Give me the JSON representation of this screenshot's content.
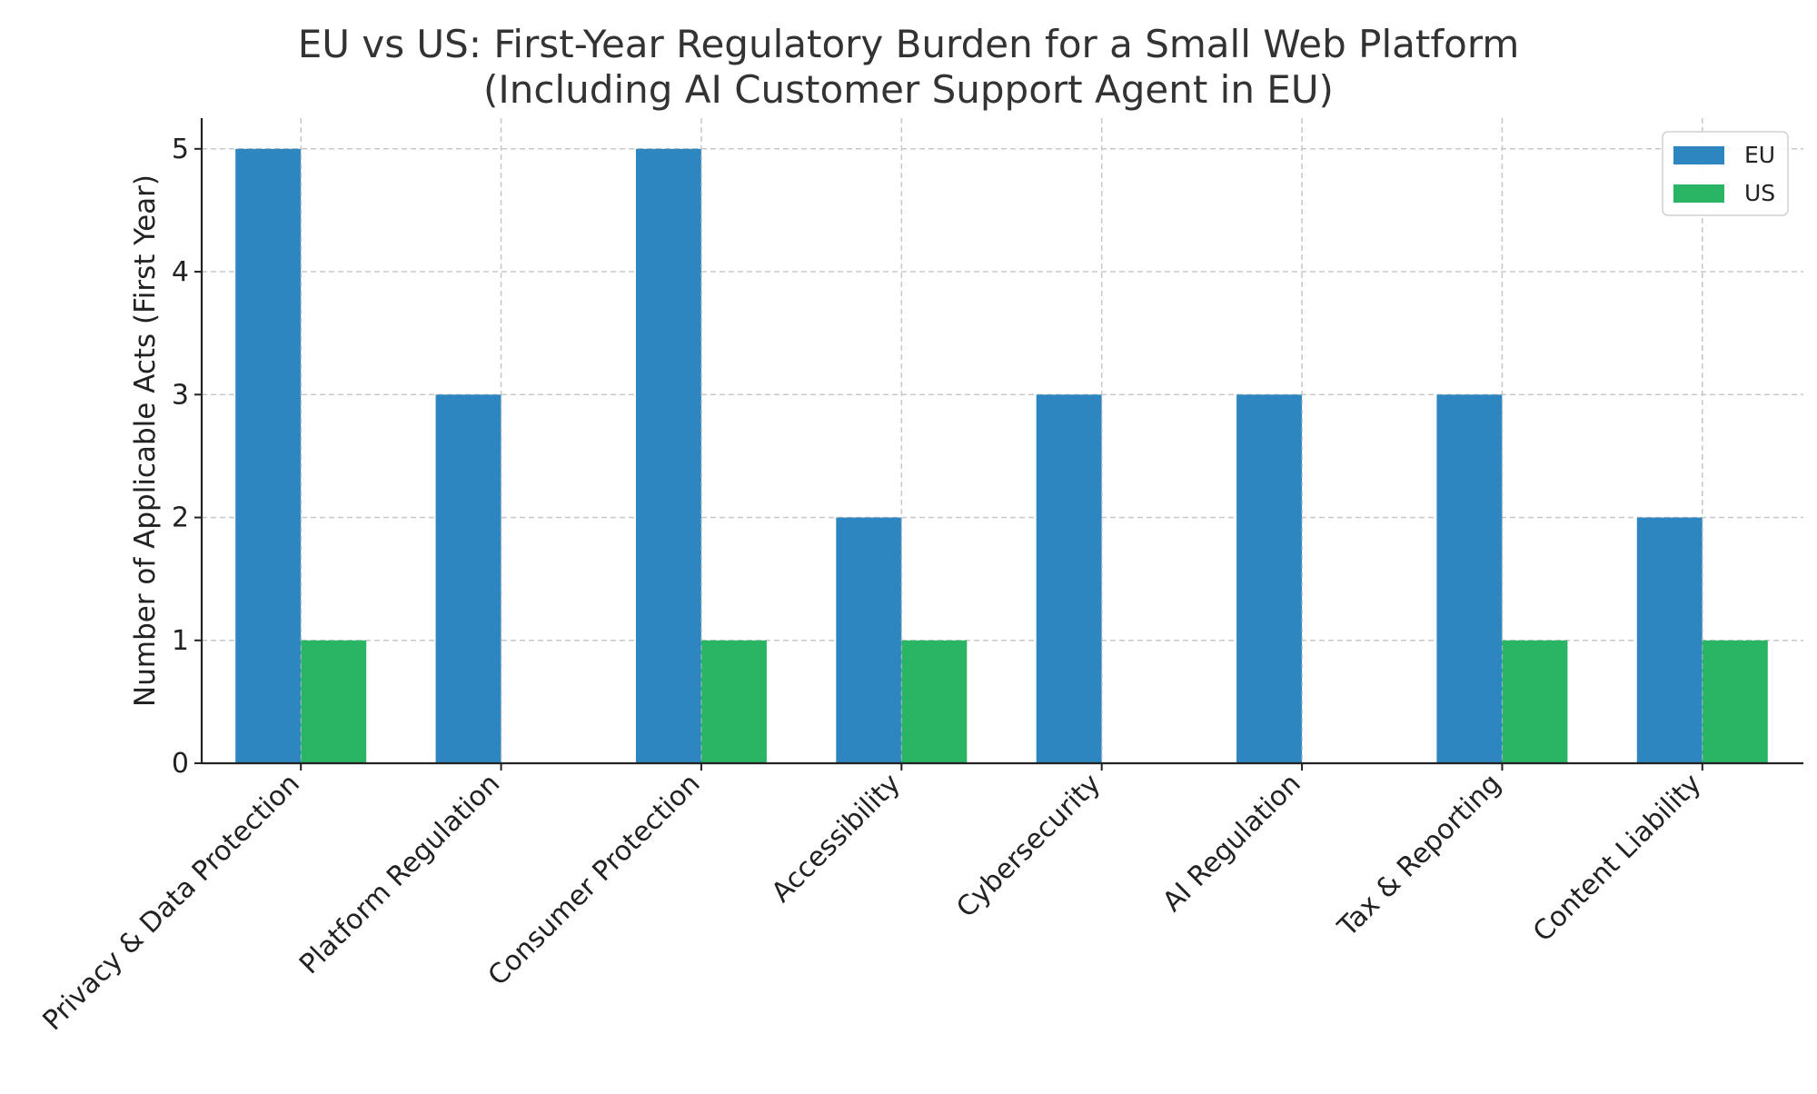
{
  "colors": {
    "EU": "#2e86c1",
    "US": "#2ab564",
    "grid": "#c8c8c8",
    "axis": "#222222",
    "text": "#222222",
    "title": "#333333"
  },
  "chart_data": {
    "type": "bar",
    "title": [
      "EU vs US: First-Year Regulatory Burden for a Small Web Platform",
      "(Including AI Customer Support Agent in EU)"
    ],
    "xlabel": "",
    "ylabel": "Number of Applicable Acts (First Year)",
    "categories": [
      "Privacy & Data Protection",
      "Platform Regulation",
      "Consumer Protection",
      "Accessibility",
      "Cybersecurity",
      "AI Regulation",
      "Tax & Reporting",
      "Content Liability"
    ],
    "series": [
      {
        "name": "EU",
        "values": [
          5,
          3,
          5,
          2,
          3,
          3,
          3,
          2
        ]
      },
      {
        "name": "US",
        "values": [
          1,
          0,
          1,
          1,
          0,
          0,
          1,
          1
        ]
      }
    ],
    "ylim": [
      0,
      5.25
    ],
    "yticks": [
      "0",
      "1",
      "2",
      "3",
      "4",
      "5"
    ],
    "grid": true,
    "legend_position": "top-right"
  }
}
